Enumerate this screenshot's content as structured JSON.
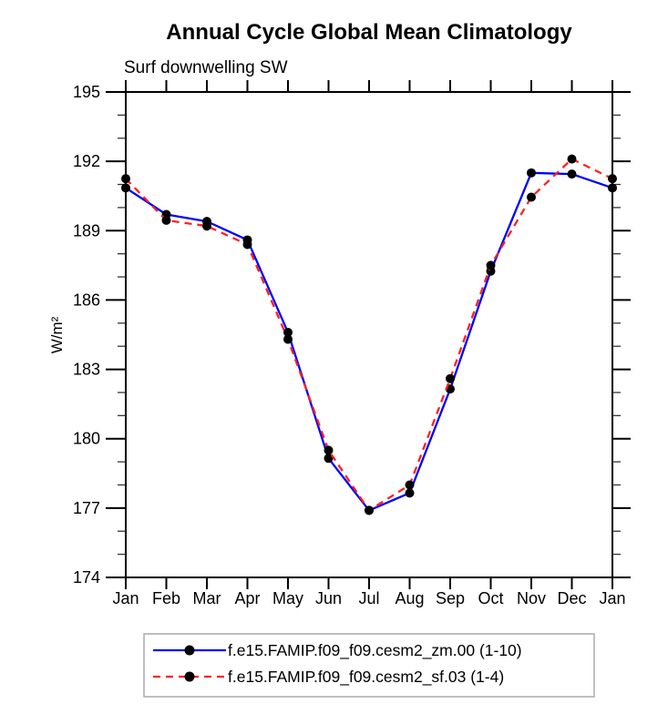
{
  "chart_data": {
    "type": "line",
    "title": "Annual Cycle Global Mean Climatology",
    "subtitle": "Surf downwelling SW",
    "ylabel": "W/m²",
    "xlabel": "",
    "categories": [
      "Jan",
      "Feb",
      "Mar",
      "Apr",
      "May",
      "Jun",
      "Jul",
      "Aug",
      "Sep",
      "Oct",
      "Nov",
      "Dec",
      "Jan"
    ],
    "ylim": [
      174,
      195
    ],
    "yticks": [
      174,
      177,
      180,
      183,
      186,
      189,
      192,
      195
    ],
    "ytick_step": 3,
    "yminor_step": 1,
    "grid": false,
    "legend_position": "bottom",
    "axis_color": "#000000",
    "marker_color": "#000000",
    "series": [
      {
        "name": "f.e15.FAMIP.f09_f09.cesm2_zm.00 (1-10)",
        "color": "#0000ff",
        "style": "solid",
        "marker": "black-circle",
        "values": [
          190.85,
          189.7,
          189.4,
          188.6,
          184.6,
          179.15,
          176.9,
          177.65,
          182.15,
          187.25,
          191.5,
          191.45,
          190.85
        ]
      },
      {
        "name": "f.e15.FAMIP.f09_f09.cesm2_sf.03 (1-4)",
        "color": "#ff2020",
        "style": "dashed",
        "marker": "black-circle",
        "values": [
          191.25,
          189.45,
          189.2,
          188.4,
          184.3,
          179.5,
          176.9,
          178.0,
          182.6,
          187.5,
          190.45,
          192.1,
          191.25
        ]
      }
    ]
  }
}
